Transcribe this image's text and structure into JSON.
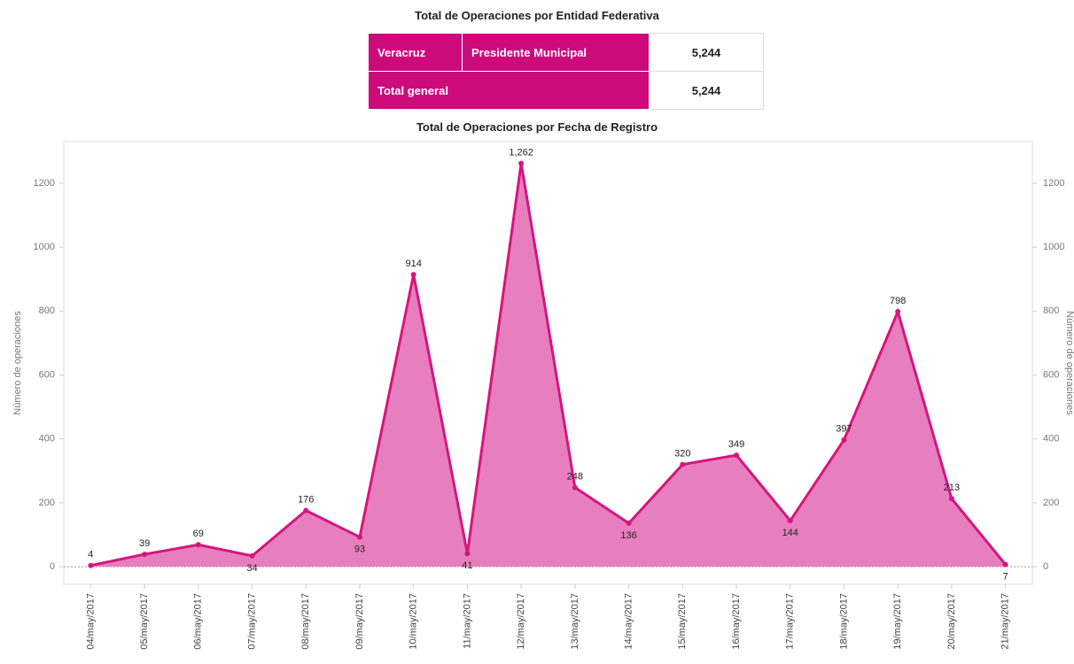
{
  "table": {
    "title": "Total de Operaciones por Entidad Federativa",
    "rows": [
      [
        "Veracruz",
        "Presidente Municipal",
        "5,244"
      ],
      [
        "Total general",
        "5,244"
      ]
    ]
  },
  "chart_data": {
    "type": "area",
    "title": "Total de Operaciones por Fecha de Registro",
    "y_label": "Número de operaciones",
    "categories": [
      "04/may/2017",
      "05/may/2017",
      "06/may/2017",
      "07/may/2017",
      "08/may/2017",
      "09/may/2017",
      "10/may/2017",
      "11/may/2017",
      "12/may/2017",
      "13/may/2017",
      "14/may/2017",
      "15/may/2017",
      "16/may/2017",
      "17/may/2017",
      "18/may/2017",
      "19/may/2017",
      "20/may/2017",
      "21/may/2017"
    ],
    "values": [
      4,
      39,
      69,
      34,
      176,
      93,
      914,
      41,
      1262,
      248,
      136,
      320,
      349,
      144,
      397,
      798,
      213,
      7
    ],
    "value_labels": [
      "4",
      "39",
      "69",
      "34",
      "176",
      "93",
      "914",
      "41",
      "1,262",
      "248",
      "136",
      "320",
      "349",
      "144",
      "397",
      "798",
      "213",
      "7"
    ],
    "color": "#d6157f",
    "fill": "#e77fbf",
    "ylim": [
      -55,
      1330
    ],
    "yticks": [
      0,
      200,
      400,
      600,
      800,
      1000,
      1200
    ],
    "y2lim": [
      -55,
      1330
    ],
    "y2ticks": [
      0,
      200,
      400,
      600,
      800,
      1000,
      1200
    ]
  }
}
